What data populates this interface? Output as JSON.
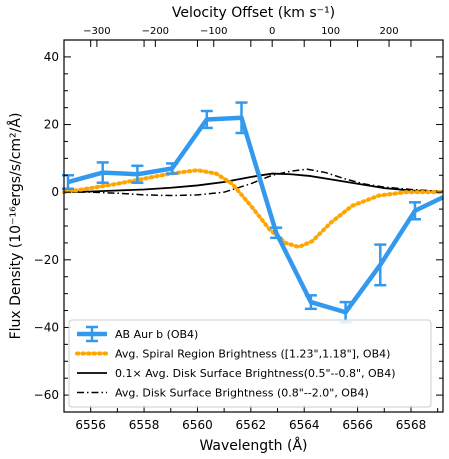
{
  "chart_data": {
    "type": "line",
    "xlabel": "Wavelength (Å)",
    "ylabel": "Flux Density (10⁻¹⁶ergs/s/cm²/Å)",
    "top_xlabel": "Velocity Offset (km s⁻¹)",
    "xlim": [
      6555.0,
      6569.2
    ],
    "ylim": [
      -65,
      45
    ],
    "xticks": [
      6556,
      6558,
      6560,
      6562,
      6564,
      6566,
      6568
    ],
    "yticks": [
      -60,
      -40,
      -20,
      0,
      20,
      40
    ],
    "top_ticks_kms": [
      -300,
      -200,
      -100,
      0,
      100,
      200
    ],
    "top_tick_labels": [
      "−300",
      "−200",
      "−100",
      "0",
      "100",
      "200"
    ],
    "ytick_labels": [
      "−60",
      "−40",
      "−20",
      "0",
      "20",
      "40"
    ],
    "rest_wavelength": 6562.8,
    "legend_position": "lower-left",
    "series": [
      {
        "name": "AB Aur b (OB4)",
        "style": "errorbar",
        "color": "#3399ee",
        "x": [
          6555.15,
          6556.45,
          6557.75,
          6559.05,
          6560.35,
          6561.65,
          6562.95,
          6564.25,
          6565.55,
          6566.85,
          6568.15,
          6569.2
        ],
        "y": [
          3,
          5.8,
          5.3,
          7,
          21.5,
          22,
          -12,
          -32.5,
          -35.5,
          -21.5,
          -5.5,
          -1.5
        ],
        "yerr": [
          2,
          3,
          2.5,
          1.5,
          2.5,
          4.5,
          1.5,
          2,
          3,
          6,
          2.5,
          1.5
        ]
      },
      {
        "name": "Avg. Spiral Region Brightness ([1.23\",1.18\"], OB4)",
        "style": "dotted",
        "color": "#ffa500",
        "x": [
          6555.0,
          6556.0,
          6557.0,
          6558.0,
          6559.0,
          6560.0,
          6560.7,
          6561.3,
          6562.0,
          6562.7,
          6563.3,
          6563.8,
          6564.3,
          6565.0,
          6565.8,
          6566.8,
          6567.8,
          6568.6,
          6569.2
        ],
        "y": [
          0,
          1.2,
          2.5,
          4,
          5.5,
          6.5,
          5.5,
          2.5,
          -4,
          -11,
          -15,
          -16.2,
          -14.5,
          -9,
          -4,
          -1,
          0,
          0,
          0
        ]
      },
      {
        "name": "0.1× Avg. Disk Surface Brightness(0.5\"--0.8\", OB4)",
        "style": "solid",
        "color": "#000000",
        "x": [
          6555.0,
          6556.0,
          6557.0,
          6558.0,
          6559.0,
          6560.0,
          6561.0,
          6562.0,
          6562.8,
          6563.5,
          6564.2,
          6565.0,
          6566.0,
          6567.0,
          6568.0,
          6569.2
        ],
        "y": [
          0,
          0.2,
          0.5,
          0.8,
          1.3,
          2,
          3,
          4.5,
          5.5,
          5.3,
          4.8,
          3.8,
          2.5,
          1.2,
          0.5,
          0.2
        ]
      },
      {
        "name": "Avg. Disk Surface Brightness (0.8\"--2.0\", OB4)",
        "style": "dashdot",
        "color": "#000000",
        "x": [
          6555.0,
          6556.0,
          6557.0,
          6558.0,
          6559.0,
          6560.0,
          6561.0,
          6562.0,
          6562.8,
          6563.5,
          6564.1,
          6564.8,
          6565.5,
          6566.2,
          6567.0,
          6568.0,
          6569.2
        ],
        "y": [
          0,
          0,
          -0.3,
          -0.8,
          -1,
          -0.8,
          0,
          2.5,
          5,
          6.2,
          6.8,
          5.8,
          4,
          2.5,
          1.5,
          0.8,
          0.2
        ]
      }
    ]
  }
}
